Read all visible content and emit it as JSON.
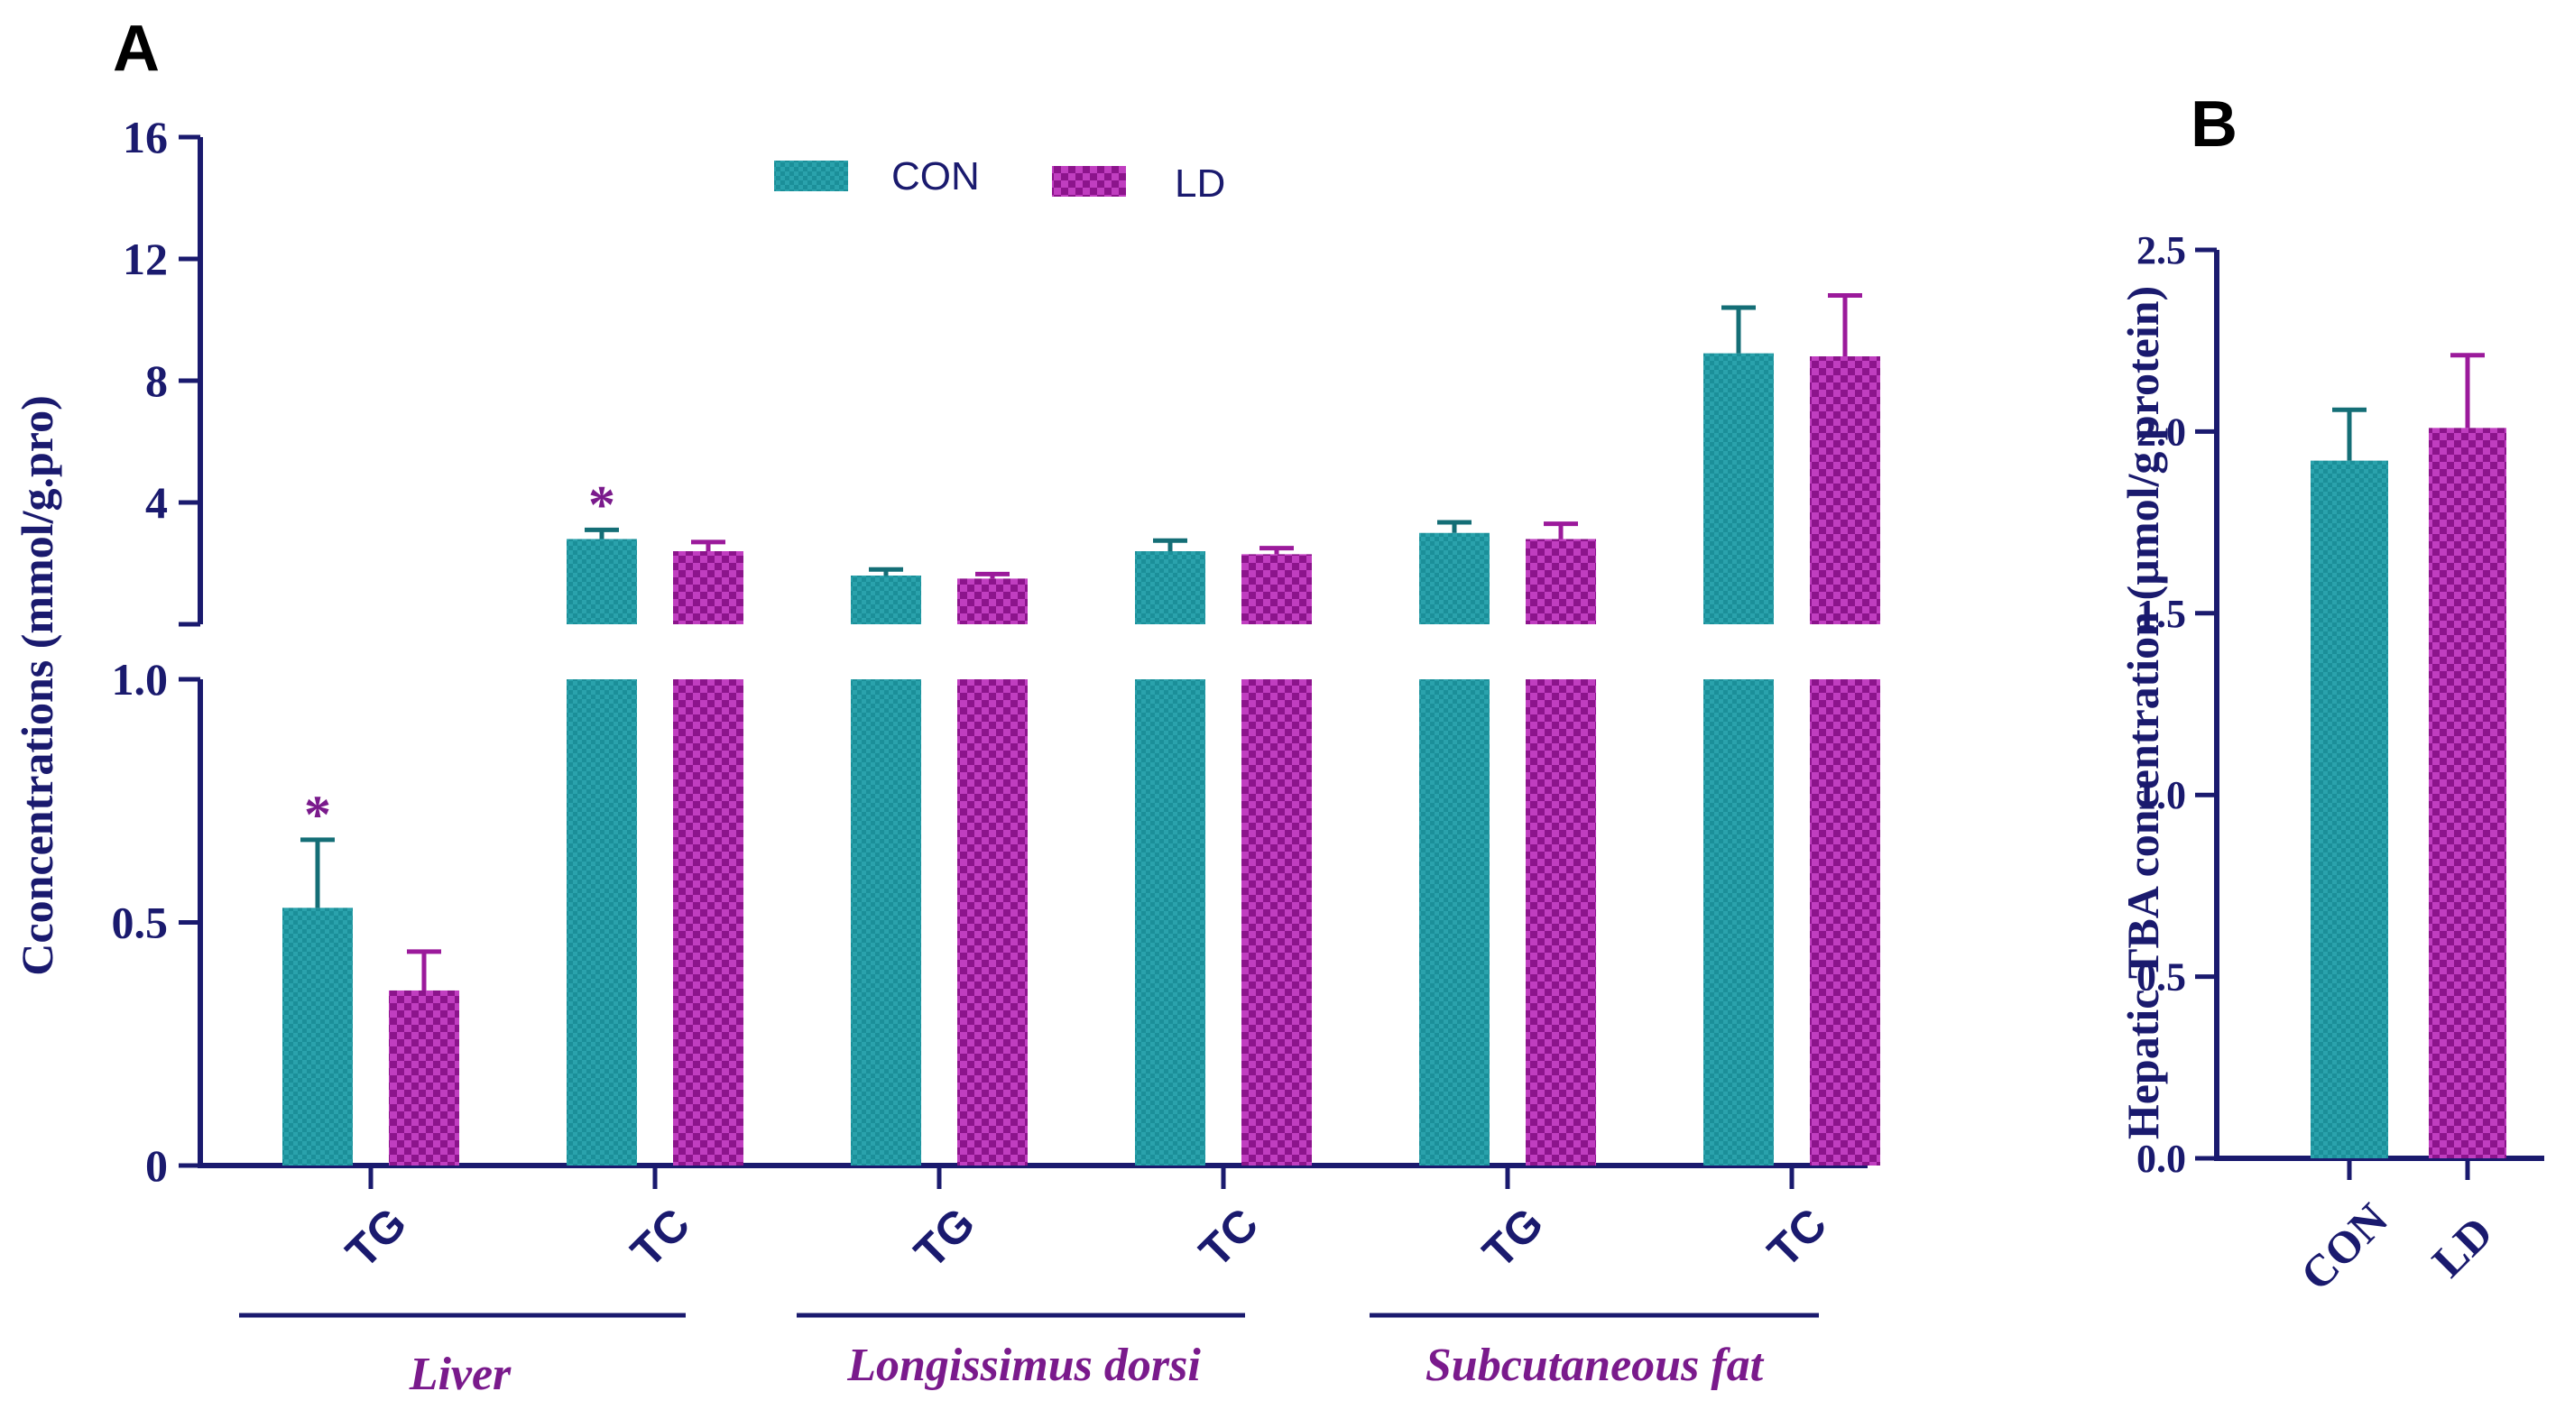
{
  "colors": {
    "axis": "#1a1a6e",
    "con": "#1b8f99",
    "con_dark": "#146e76",
    "ld": "#9b1a9b",
    "ld_dark": "#6d0f6d",
    "group_label": "#7a1a8c",
    "star": "#7a1a8c"
  },
  "chart_data": [
    {
      "type": "bar",
      "panel_label": "A",
      "ylabel": "Cconcentrations (mmol/g.pro)",
      "y_axis_break": true,
      "lower_segment": {
        "ylim": [
          0,
          1.0
        ],
        "ticks": [
          "0",
          "0.5",
          "1.0"
        ],
        "tick_values": [
          0,
          0.5,
          1.0
        ]
      },
      "upper_segment": {
        "ylim": [
          0,
          16
        ],
        "ticks": [
          "4",
          "8",
          "12",
          "16"
        ],
        "tick_values": [
          4,
          8,
          12,
          16
        ]
      },
      "categories": [
        "TG",
        "TC",
        "TG",
        "TC",
        "TG",
        "TC"
      ],
      "groups": [
        {
          "label": "Liver",
          "categories": [
            0,
            1
          ]
        },
        {
          "label": "Longissimus dorsi",
          "categories": [
            2,
            3
          ]
        },
        {
          "label": "Subcutaneous fat",
          "categories": [
            4,
            5
          ]
        }
      ],
      "legend": [
        "CON",
        "LD"
      ],
      "legend_position": "top",
      "series": [
        {
          "name": "CON",
          "values": [
            0.53,
            2.8,
            1.6,
            2.4,
            3.0,
            8.9
          ],
          "errors": [
            0.14,
            0.3,
            0.2,
            0.35,
            0.35,
            1.5
          ],
          "significance": [
            "*",
            "*",
            "",
            "",
            "",
            ""
          ]
        },
        {
          "name": "LD",
          "values": [
            0.36,
            2.4,
            1.5,
            2.3,
            2.8,
            8.8
          ],
          "errors": [
            0.08,
            0.3,
            0.15,
            0.2,
            0.5,
            2.0
          ],
          "significance": [
            "",
            "",
            "",
            "",
            "",
            ""
          ]
        }
      ]
    },
    {
      "type": "bar",
      "panel_label": "B",
      "ylabel": "Hepatic TBA concentration (µmol/g protein)",
      "ylim": [
        0,
        2.5
      ],
      "ticks": [
        "0.0",
        "0.5",
        "1.0",
        "1.5",
        "2.0",
        "2.5"
      ],
      "tick_values": [
        0,
        0.5,
        1.0,
        1.5,
        2.0,
        2.5
      ],
      "categories": [
        "CON",
        "LD"
      ],
      "values": [
        1.92,
        2.01
      ],
      "errors": [
        0.14,
        0.2
      ]
    }
  ]
}
